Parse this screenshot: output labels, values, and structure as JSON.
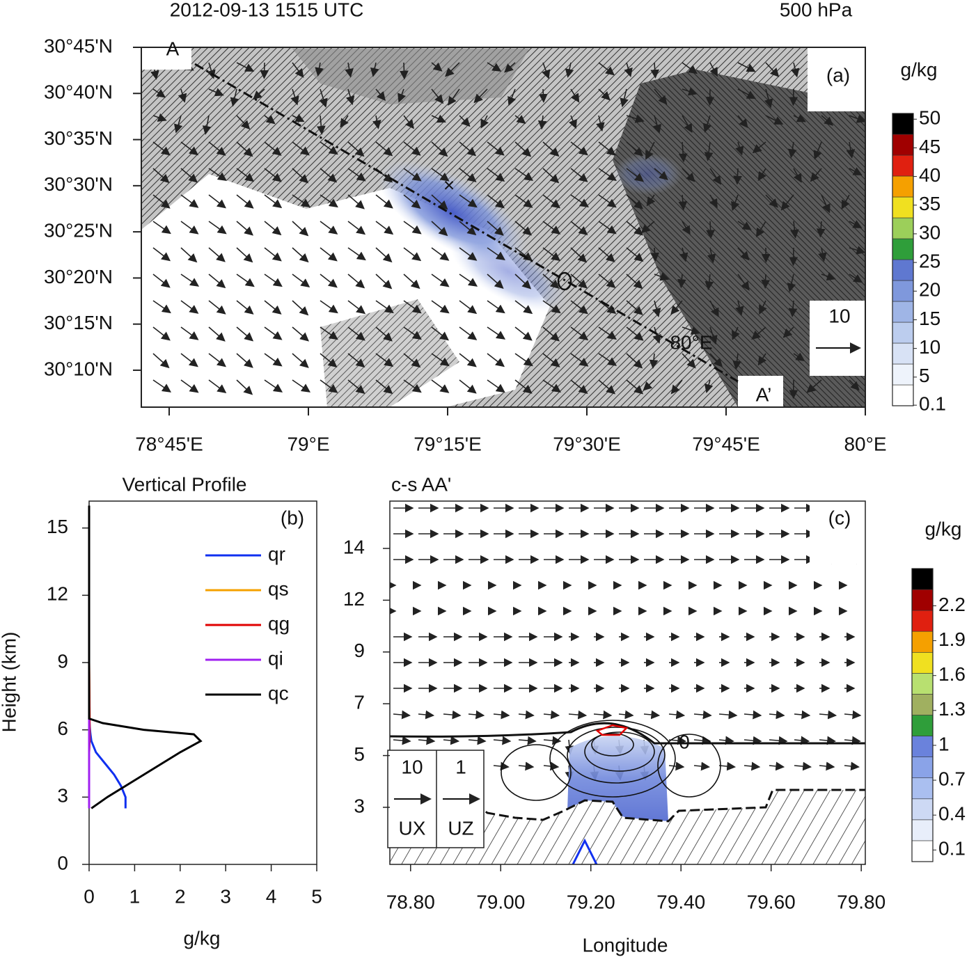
{
  "chart_data": [
    {
      "type": "map",
      "title": "2012-09-13 1515 UTC",
      "level": "500 hPa",
      "panel": "(a)",
      "section_start": "A",
      "section_end": "A’",
      "annotation": "80°E",
      "reference_vector": "10",
      "colorbar_label": "g/kg",
      "xlim": [
        78.7,
        80.0
      ],
      "xticks": [
        {
          "value": 78.75,
          "label": "78°45'E"
        },
        {
          "value": 79,
          "label": "79°E"
        },
        {
          "value": 79.25,
          "label": "79°15'E"
        },
        {
          "value": 79.5,
          "label": "79°30'E"
        },
        {
          "value": 79.75,
          "label": "79°45'E"
        },
        {
          "value": 80,
          "label": "80°E"
        }
      ],
      "ylim": [
        30.1,
        30.75
      ],
      "yticks": [
        {
          "value": 30.1667,
          "label": "30°10'N"
        },
        {
          "value": 30.25,
          "label": "30°15'N"
        },
        {
          "value": 30.3333,
          "label": "30°20'N"
        },
        {
          "value": 30.4167,
          "label": "30°25'N"
        },
        {
          "value": 30.5,
          "label": "30°30'N"
        },
        {
          "value": 30.5833,
          "label": "30°35'N"
        },
        {
          "value": 30.6667,
          "label": "30°40'N"
        },
        {
          "value": 30.75,
          "label": "30°45'N"
        }
      ],
      "clim": [
        0,
        51
      ],
      "cticks": [
        0.1,
        5,
        10,
        15,
        20,
        25,
        30,
        35,
        40,
        45,
        50
      ],
      "colors": [
        "#ffffff",
        "#eef3fb",
        "#d8e2f5",
        "#bccdee",
        "#9fb5e6",
        "#7f98dc",
        "#5f78d0",
        "#2f9e3a",
        "#9ccf5a",
        "#f0e020",
        "#f5a000",
        "#e02010",
        "#a00000",
        "#000000"
      ]
    },
    {
      "type": "line",
      "title": "Vertical Profile",
      "panel": "(b)",
      "xlabel": "g/kg",
      "ylabel": "Height (km)",
      "xlim": [
        0,
        5
      ],
      "xticks": [
        0,
        1,
        2,
        3,
        4,
        5
      ],
      "ylim": [
        0,
        16.2
      ],
      "yticks": [
        0,
        3,
        6,
        9,
        12,
        15
      ],
      "y": [
        2.5,
        3,
        3.5,
        4,
        4.5,
        5,
        5.5,
        5.8,
        6,
        6.3,
        6.5,
        9,
        12,
        15,
        16
      ],
      "series": [
        {
          "name": "qr",
          "color": "#1030f0",
          "values": [
            0.8,
            0.8,
            0.7,
            0.55,
            0.35,
            0.15,
            0.05,
            0.03,
            0.02,
            0.01,
            0,
            0,
            0,
            0,
            0
          ]
        },
        {
          "name": "qs",
          "color": "#f5a000",
          "values": [
            0,
            0,
            0,
            0,
            0,
            0,
            0.01,
            0.01,
            0.01,
            0.01,
            0.01,
            0,
            0,
            0,
            0
          ]
        },
        {
          "name": "qg",
          "color": "#e00000",
          "values": [
            0,
            0,
            0,
            0,
            0,
            0,
            0.01,
            0.01,
            0.01,
            0.01,
            0.01,
            0,
            0,
            0,
            0
          ]
        },
        {
          "name": "qi",
          "color": "#a020f0",
          "values": [
            0,
            0,
            0,
            0,
            0,
            0,
            0,
            0,
            0,
            0,
            0,
            0,
            0,
            0,
            0
          ]
        },
        {
          "name": "qc",
          "color": "#000000",
          "values": [
            0.05,
            0.4,
            0.8,
            1.2,
            1.6,
            2.0,
            2.45,
            2.3,
            1.2,
            0.3,
            0,
            0,
            0,
            0,
            0
          ]
        }
      ]
    },
    {
      "type": "cross-section",
      "title": "c-s AA'",
      "panel": "(c)",
      "xlabel": "Longitude",
      "contour_label": "0",
      "reference_vectors": [
        {
          "label": "10",
          "name": "UX"
        },
        {
          "label": "1",
          "name": "UZ"
        }
      ],
      "xlim": [
        78.754,
        79.809
      ],
      "xticks": [
        {
          "value": 78.8,
          "label": "78.80"
        },
        {
          "value": 79,
          "label": "79.00"
        },
        {
          "value": 79.2,
          "label": "79.20"
        },
        {
          "value": 79.4,
          "label": "79.40"
        },
        {
          "value": 79.6,
          "label": "79.60"
        },
        {
          "value": 79.8,
          "label": "79.80"
        }
      ],
      "yticks": [
        3,
        5,
        7,
        9,
        12,
        14
      ],
      "colorbar_label": "g/kg",
      "clim": [
        0,
        2.52
      ],
      "cticks": [
        0.1,
        0.4,
        0.7,
        1,
        1.3,
        1.6,
        1.9,
        2.2
      ],
      "colors": [
        "#ffffff",
        "#e8eefa",
        "#cdd9f4",
        "#aabff0",
        "#8aa3e8",
        "#6a82dc",
        "#2f9e3a",
        "#a0b060",
        "#b8e070",
        "#f0e020",
        "#f5a000",
        "#e02010",
        "#a00000",
        "#000000"
      ]
    }
  ]
}
